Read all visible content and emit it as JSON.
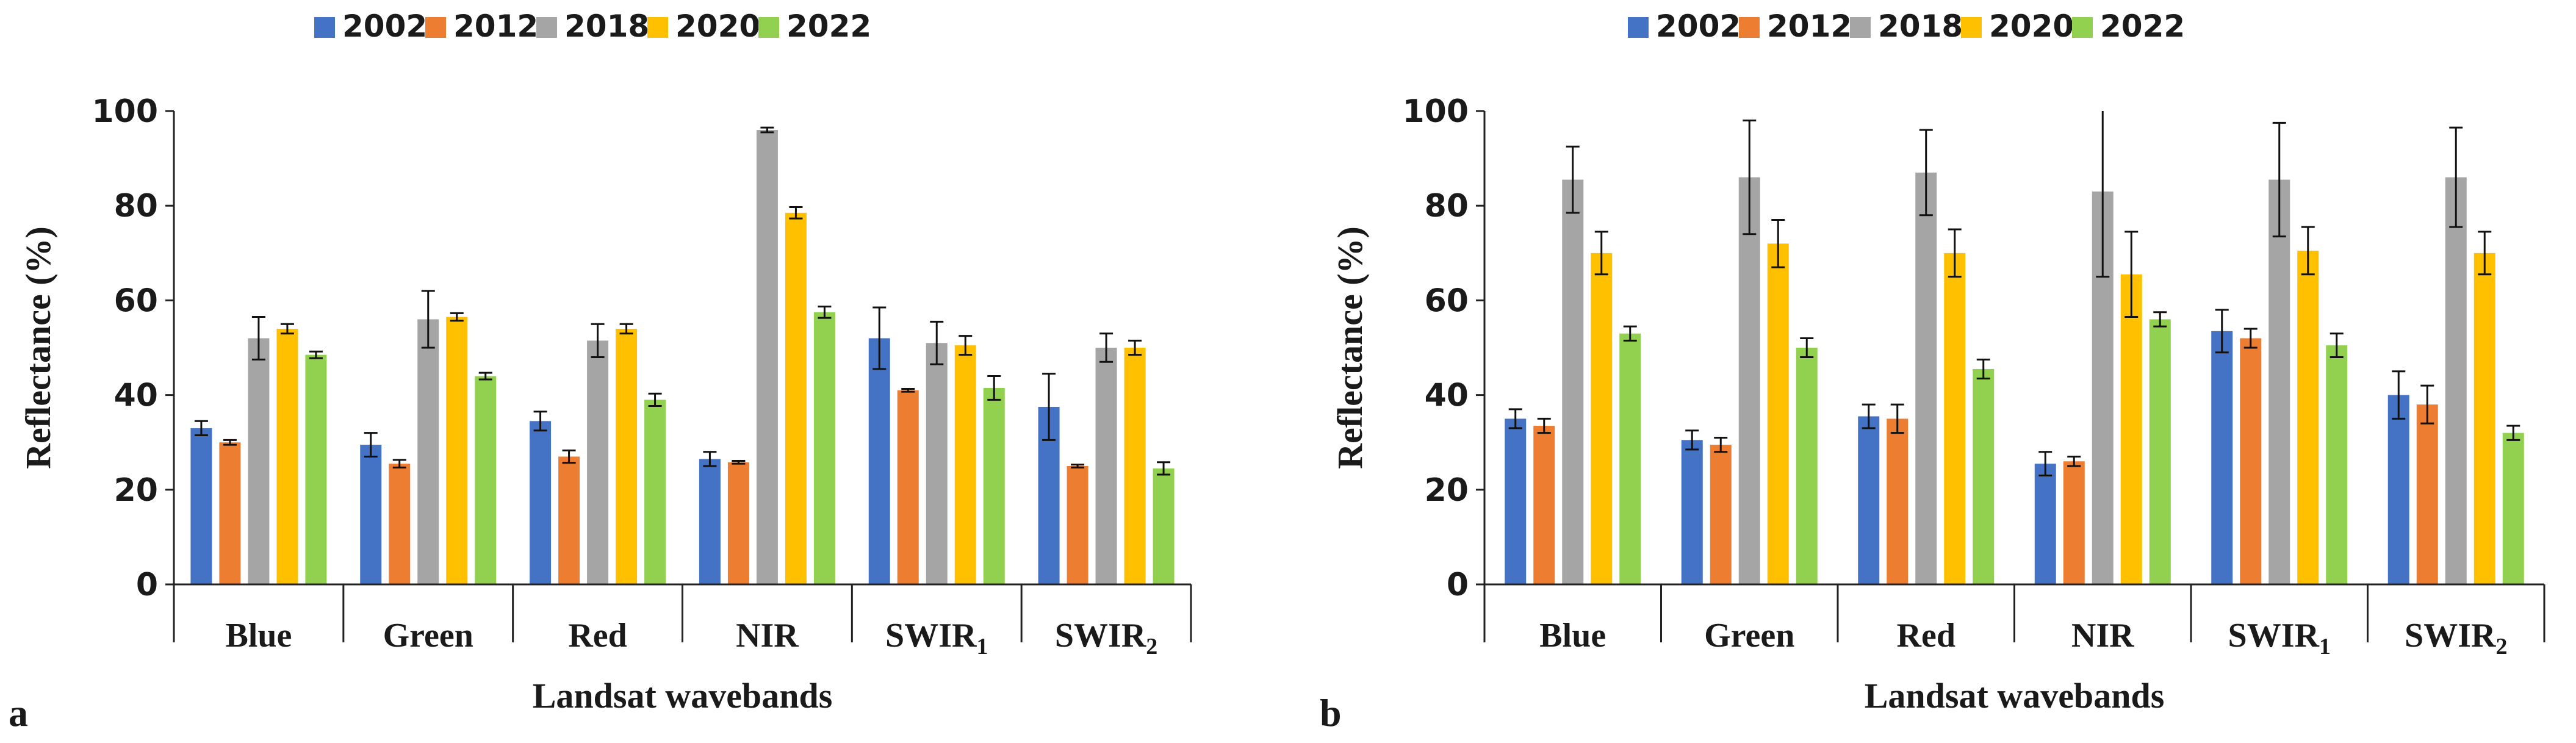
{
  "colors": {
    "2002": "#4472C4",
    "2012": "#ED7D31",
    "2018": "#A5A5A5",
    "2020": "#FFC000",
    "2022": "#92D050",
    "axis": "#222222",
    "errorbar": "#111111"
  },
  "chart_data": [
    {
      "type": "bar",
      "panel_label": "a",
      "xlabel": "Landsat wavebands",
      "ylabel": "Reflectance (%)",
      "ylim": [
        0,
        100
      ],
      "yticks": [
        "0",
        "20",
        "40",
        "60",
        "80",
        "100"
      ],
      "categories": [
        {
          "base": "Blue",
          "sub": ""
        },
        {
          "base": "Green",
          "sub": ""
        },
        {
          "base": "Red",
          "sub": ""
        },
        {
          "base": "NIR",
          "sub": ""
        },
        {
          "base": "SWIR",
          "sub": "1"
        },
        {
          "base": "SWIR",
          "sub": "2"
        }
      ],
      "series": [
        {
          "name": "2002",
          "values": [
            33,
            29.5,
            34.5,
            26.5,
            52,
            37.5
          ],
          "errors": [
            1.5,
            2.5,
            2,
            1.5,
            6.5,
            7
          ]
        },
        {
          "name": "2012",
          "values": [
            30,
            25.5,
            27,
            25.8,
            41,
            25
          ],
          "errors": [
            0.5,
            0.8,
            1.3,
            0.3,
            0.3,
            0.3
          ]
        },
        {
          "name": "2018",
          "values": [
            52,
            56,
            51.5,
            96,
            51,
            50
          ],
          "errors": [
            4.5,
            6,
            3.5,
            0.5,
            4.5,
            3
          ]
        },
        {
          "name": "2020",
          "values": [
            54,
            56.5,
            54,
            78.5,
            50.5,
            50
          ],
          "errors": [
            1,
            0.8,
            1,
            1.2,
            2,
            1.5
          ]
        },
        {
          "name": "2022",
          "values": [
            48.5,
            44,
            39,
            57.5,
            41.5,
            24.5
          ],
          "errors": [
            0.7,
            0.7,
            1.3,
            1.2,
            2.5,
            1.3
          ]
        }
      ]
    },
    {
      "type": "bar",
      "panel_label": "b",
      "xlabel": "Landsat wavebands",
      "ylabel": "Reflectance (%)",
      "ylim": [
        0,
        100
      ],
      "yticks": [
        "0",
        "20",
        "40",
        "60",
        "80",
        "100"
      ],
      "categories": [
        {
          "base": "Blue",
          "sub": ""
        },
        {
          "base": "Green",
          "sub": ""
        },
        {
          "base": "Red",
          "sub": ""
        },
        {
          "base": "NIR",
          "sub": ""
        },
        {
          "base": "SWIR",
          "sub": "1"
        },
        {
          "base": "SWIR",
          "sub": "2"
        }
      ],
      "series": [
        {
          "name": "2002",
          "values": [
            35,
            30.5,
            35.5,
            25.5,
            53.5,
            40
          ],
          "errors": [
            2,
            2,
            2.5,
            2.5,
            4.5,
            5
          ]
        },
        {
          "name": "2012",
          "values": [
            33.5,
            29.5,
            35,
            26,
            52,
            38
          ],
          "errors": [
            1.5,
            1.5,
            3,
            1,
            2,
            4
          ]
        },
        {
          "name": "2018",
          "values": [
            85.5,
            86,
            87,
            83,
            85.5,
            86
          ],
          "errors": [
            7,
            12,
            9,
            18,
            12,
            10.5
          ]
        },
        {
          "name": "2020",
          "values": [
            70,
            72,
            70,
            65.5,
            70.5,
            70
          ],
          "errors": [
            4.5,
            5,
            5,
            9,
            5,
            4.5
          ]
        },
        {
          "name": "2022",
          "values": [
            53,
            50,
            45.5,
            56,
            50.5,
            32
          ],
          "errors": [
            1.5,
            2,
            2,
            1.5,
            2.5,
            1.5
          ]
        }
      ]
    }
  ]
}
